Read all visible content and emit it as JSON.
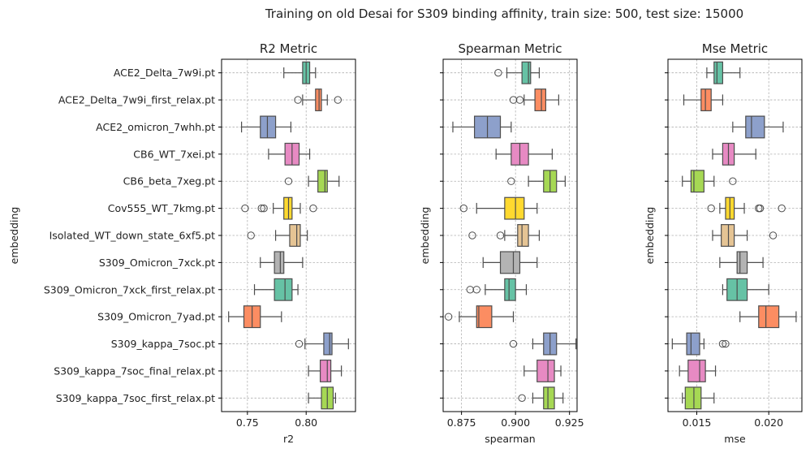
{
  "suptitle": "Training on old Desai for S309 binding affinity, train size: 500, test size: 15000",
  "palette": [
    "#66c2a5",
    "#fc8d62",
    "#8da0cb",
    "#e78ac3",
    "#a6d854",
    "#ffd92f",
    "#e5c494",
    "#b3b3b3"
  ],
  "chart_data": [
    {
      "type": "box",
      "title": "R2 Metric",
      "xlabel": "r2",
      "ylabel": "embedding",
      "xlim": [
        0.728,
        0.842
      ],
      "xticks": [
        0.75,
        0.8
      ],
      "xtick_labels": [
        "0.75",
        "0.80"
      ],
      "grid": true,
      "categories": [
        "ACE2_Delta_7w9i.pt",
        "ACE2_Delta_7w9i_first_relax.pt",
        "ACE2_omicron_7whh.pt",
        "CB6_WT_7xei.pt",
        "CB6_beta_7xeg.pt",
        "Cov555_WT_7kmg.pt",
        "Isolated_WT_down_state_6xf5.pt",
        "S309_Omicron_7xck.pt",
        "S309_Omicron_7xck_first_relax.pt",
        "S309_Omicron_7yad.pt",
        "S309_kappa_7soc.pt",
        "S309_kappa_7soc_final_relax.pt",
        "S309_kappa_7soc_first_relax.pt"
      ],
      "boxes": [
        {
          "wlo": 0.781,
          "q1": 0.797,
          "med": 0.8,
          "q3": 0.803,
          "whi": 0.808,
          "outliers": []
        },
        {
          "wlo": 0.797,
          "q1": 0.808,
          "med": 0.811,
          "q3": 0.813,
          "whi": 0.818,
          "outliers": [
            0.793,
            0.827
          ]
        },
        {
          "wlo": 0.745,
          "q1": 0.761,
          "med": 0.767,
          "q3": 0.774,
          "whi": 0.787,
          "outliers": []
        },
        {
          "wlo": 0.768,
          "q1": 0.782,
          "med": 0.788,
          "q3": 0.794,
          "whi": 0.803,
          "outliers": []
        },
        {
          "wlo": 0.802,
          "q1": 0.81,
          "med": 0.816,
          "q3": 0.818,
          "whi": 0.828,
          "outliers": [
            0.785
          ]
        },
        {
          "wlo": 0.772,
          "q1": 0.781,
          "med": 0.785,
          "q3": 0.788,
          "whi": 0.795,
          "outliers": [
            0.748,
            0.762,
            0.764,
            0.806
          ]
        },
        {
          "wlo": 0.774,
          "q1": 0.786,
          "med": 0.792,
          "q3": 0.795,
          "whi": 0.801,
          "outliers": [
            0.753
          ]
        },
        {
          "wlo": 0.761,
          "q1": 0.773,
          "med": 0.778,
          "q3": 0.781,
          "whi": 0.797,
          "outliers": []
        },
        {
          "wlo": 0.756,
          "q1": 0.773,
          "med": 0.782,
          "q3": 0.788,
          "whi": 0.793,
          "outliers": []
        },
        {
          "wlo": 0.734,
          "q1": 0.747,
          "med": 0.754,
          "q3": 0.761,
          "whi": 0.779,
          "outliers": []
        },
        {
          "wlo": 0.799,
          "q1": 0.815,
          "med": 0.82,
          "q3": 0.822,
          "whi": 0.836,
          "outliers": [
            0.794
          ]
        },
        {
          "wlo": 0.802,
          "q1": 0.812,
          "med": 0.818,
          "q3": 0.821,
          "whi": 0.83,
          "outliers": []
        },
        {
          "wlo": 0.802,
          "q1": 0.813,
          "med": 0.818,
          "q3": 0.823,
          "whi": 0.825,
          "outliers": []
        }
      ]
    },
    {
      "type": "box",
      "title": "Spearman Metric",
      "xlabel": "spearman",
      "ylabel": "embedding",
      "xlim": [
        0.8665,
        0.9285
      ],
      "xticks": [
        0.875,
        0.9,
        0.925
      ],
      "xtick_labels": [
        "0.875",
        "0.900",
        "0.925"
      ],
      "grid": true,
      "boxes": [
        {
          "wlo": 0.896,
          "q1": 0.903,
          "med": 0.906,
          "q3": 0.907,
          "whi": 0.911,
          "outliers": [
            0.892
          ]
        },
        {
          "wlo": 0.904,
          "q1": 0.909,
          "med": 0.912,
          "q3": 0.914,
          "whi": 0.92,
          "outliers": [
            0.899,
            0.902
          ]
        },
        {
          "wlo": 0.871,
          "q1": 0.881,
          "med": 0.887,
          "q3": 0.893,
          "whi": 0.898,
          "outliers": []
        },
        {
          "wlo": 0.891,
          "q1": 0.898,
          "med": 0.902,
          "q3": 0.906,
          "whi": 0.917,
          "outliers": []
        },
        {
          "wlo": 0.906,
          "q1": 0.913,
          "med": 0.916,
          "q3": 0.919,
          "whi": 0.923,
          "outliers": [
            0.898
          ]
        },
        {
          "wlo": 0.882,
          "q1": 0.895,
          "med": 0.9,
          "q3": 0.904,
          "whi": 0.91,
          "outliers": [
            0.876
          ]
        },
        {
          "wlo": 0.895,
          "q1": 0.901,
          "med": 0.903,
          "q3": 0.906,
          "whi": 0.911,
          "outliers": [
            0.88,
            0.893
          ]
        },
        {
          "wlo": 0.885,
          "q1": 0.893,
          "med": 0.899,
          "q3": 0.902,
          "whi": 0.91,
          "outliers": []
        },
        {
          "wlo": 0.886,
          "q1": 0.895,
          "med": 0.897,
          "q3": 0.9,
          "whi": 0.905,
          "outliers": [
            0.879,
            0.882
          ]
        },
        {
          "wlo": 0.874,
          "q1": 0.882,
          "med": 0.883,
          "q3": 0.889,
          "whi": 0.899,
          "outliers": [
            0.869
          ]
        },
        {
          "wlo": 0.908,
          "q1": 0.913,
          "med": 0.916,
          "q3": 0.919,
          "whi": 0.928,
          "outliers": [
            0.899
          ]
        },
        {
          "wlo": 0.904,
          "q1": 0.91,
          "med": 0.915,
          "q3": 0.918,
          "whi": 0.921,
          "outliers": []
        },
        {
          "wlo": 0.908,
          "q1": 0.913,
          "med": 0.915,
          "q3": 0.918,
          "whi": 0.922,
          "outliers": [
            0.903
          ]
        }
      ]
    },
    {
      "type": "box",
      "title": "Mse Metric",
      "xlabel": "mse",
      "ylabel": "embedding",
      "xlim": [
        0.013,
        0.0223
      ],
      "xticks": [
        0.015,
        0.02
      ],
      "xtick_labels": [
        "0.015",
        "0.020"
      ],
      "grid": true,
      "boxes": [
        {
          "wlo": 0.0157,
          "q1": 0.0162,
          "med": 0.0164,
          "q3": 0.0168,
          "whi": 0.018,
          "outliers": []
        },
        {
          "wlo": 0.0141,
          "q1": 0.0153,
          "med": 0.0156,
          "q3": 0.016,
          "whi": 0.0168,
          "outliers": []
        },
        {
          "wlo": 0.0175,
          "q1": 0.0184,
          "med": 0.0188,
          "q3": 0.0197,
          "whi": 0.021,
          "outliers": []
        },
        {
          "wlo": 0.0161,
          "q1": 0.0168,
          "med": 0.0172,
          "q3": 0.0176,
          "whi": 0.0191,
          "outliers": []
        },
        {
          "wlo": 0.014,
          "q1": 0.0146,
          "med": 0.0148,
          "q3": 0.0155,
          "whi": 0.0162,
          "outliers": [
            0.0175
          ]
        },
        {
          "wlo": 0.0166,
          "q1": 0.017,
          "med": 0.0173,
          "q3": 0.0176,
          "whi": 0.0183,
          "outliers": [
            0.016,
            0.0193,
            0.0194,
            0.0209
          ]
        },
        {
          "wlo": 0.0161,
          "q1": 0.0167,
          "med": 0.0172,
          "q3": 0.0176,
          "whi": 0.0185,
          "outliers": [
            0.0203
          ]
        },
        {
          "wlo": 0.0166,
          "q1": 0.0178,
          "med": 0.018,
          "q3": 0.0185,
          "whi": 0.0196,
          "outliers": []
        },
        {
          "wlo": 0.0168,
          "q1": 0.0171,
          "med": 0.0178,
          "q3": 0.0185,
          "whi": 0.02,
          "outliers": []
        },
        {
          "wlo": 0.018,
          "q1": 0.0193,
          "med": 0.0198,
          "q3": 0.0207,
          "whi": 0.0219,
          "outliers": []
        },
        {
          "wlo": 0.0133,
          "q1": 0.0143,
          "med": 0.0146,
          "q3": 0.0152,
          "whi": 0.0155,
          "outliers": [
            0.0168,
            0.017
          ]
        },
        {
          "wlo": 0.0138,
          "q1": 0.0144,
          "med": 0.0152,
          "q3": 0.0156,
          "whi": 0.0163,
          "outliers": []
        },
        {
          "wlo": 0.014,
          "q1": 0.0142,
          "med": 0.0148,
          "q3": 0.0153,
          "whi": 0.0162,
          "outliers": []
        }
      ]
    }
  ]
}
